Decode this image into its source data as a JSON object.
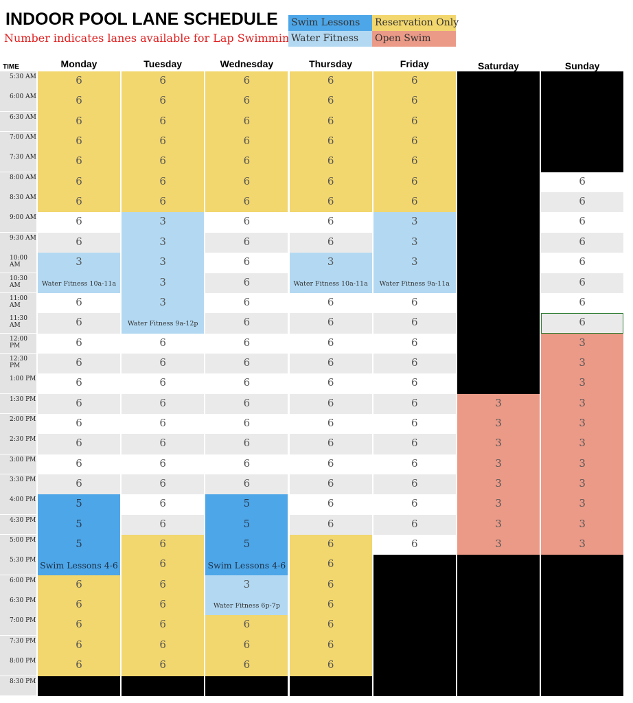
{
  "title": "INDOOR POOL LANE SCHEDULE",
  "subtitle": "Number indicates lanes available for Lap Swimming",
  "colors": {
    "swim_lessons": "#4da6e8",
    "water_fitness": "#b3d9f2",
    "reservation_only": "#f2d66e",
    "open_swim": "#eb9a88",
    "closed": "#000000",
    "row_alt": "#eaeaea",
    "row_plain": "#ffffff"
  },
  "legend": [
    {
      "label": "Swim Lessons",
      "color": "swim_lessons"
    },
    {
      "label": "Reservation Only",
      "color": "reservation_only"
    },
    {
      "label": "Water Fitness",
      "color": "water_fitness"
    },
    {
      "label": "Open Swim",
      "color": "open_swim"
    }
  ],
  "time_header": "TIME",
  "times": [
    "5:30 AM",
    "6:00 AM",
    "6:30 AM",
    "7:00 AM",
    "7:30 AM",
    "8:00 AM",
    "8:30 AM",
    "9:00 AM",
    "9:30 AM",
    "10:00 AM",
    "10:30 AM",
    "11:00 AM",
    "11:30 AM",
    "12:00 PM",
    "12:30 PM",
    "1:00 PM",
    "1:30 PM",
    "2:00 PM",
    "2:30 PM",
    "3:00 PM",
    "3:30 PM",
    "4:00 PM",
    "4:30 PM",
    "5:00 PM",
    "5:30 PM",
    "6:00 PM",
    "6:30 PM",
    "7:00 PM",
    "7:30 PM",
    "8:00 PM",
    "8:30 PM"
  ],
  "days": [
    {
      "name": "Monday",
      "runs": [
        {
          "n": 7,
          "type": "reservation_only",
          "value": "6"
        },
        {
          "n": 2,
          "type": "open",
          "value": "6"
        },
        {
          "n": 1,
          "type": "water_fitness",
          "value": "3"
        },
        {
          "n": 1,
          "type": "water_fitness",
          "value": "",
          "note": "Water Fitness 10a-11a"
        },
        {
          "n": 10,
          "type": "open",
          "value": "6"
        },
        {
          "n": 3,
          "type": "swim_lessons",
          "value": "5"
        },
        {
          "n": 1,
          "type": "swim_lessons",
          "value": "",
          "note": "Swim Lessons 4-6"
        },
        {
          "n": 5,
          "type": "reservation_only",
          "value": "6"
        },
        {
          "n": 1,
          "type": "closed",
          "value": ""
        }
      ]
    },
    {
      "name": "Tuesday",
      "runs": [
        {
          "n": 7,
          "type": "reservation_only",
          "value": "6"
        },
        {
          "n": 5,
          "type": "water_fitness",
          "value": "3"
        },
        {
          "n": 1,
          "type": "water_fitness",
          "value": "",
          "note": "Water Fitness 9a-12p"
        },
        {
          "n": 10,
          "type": "open",
          "value": "6"
        },
        {
          "n": 7,
          "type": "reservation_only",
          "value": "6"
        },
        {
          "n": 1,
          "type": "closed",
          "value": ""
        }
      ]
    },
    {
      "name": "Wednesday",
      "runs": [
        {
          "n": 7,
          "type": "reservation_only",
          "value": "6"
        },
        {
          "n": 14,
          "type": "open",
          "value": "6"
        },
        {
          "n": 3,
          "type": "swim_lessons",
          "value": "5"
        },
        {
          "n": 1,
          "type": "swim_lessons",
          "value": "",
          "note": "Swim Lessons 4-6"
        },
        {
          "n": 1,
          "type": "water_fitness",
          "value": "3"
        },
        {
          "n": 1,
          "type": "water_fitness",
          "value": "",
          "note": "Water Fitness 6p-7p"
        },
        {
          "n": 3,
          "type": "reservation_only",
          "value": "6"
        },
        {
          "n": 1,
          "type": "closed",
          "value": ""
        }
      ]
    },
    {
      "name": "Thursday",
      "runs": [
        {
          "n": 7,
          "type": "reservation_only",
          "value": "6"
        },
        {
          "n": 2,
          "type": "open",
          "value": "6"
        },
        {
          "n": 1,
          "type": "water_fitness",
          "value": "3"
        },
        {
          "n": 1,
          "type": "water_fitness",
          "value": "",
          "note": "Water Fitness 10a-11a"
        },
        {
          "n": 12,
          "type": "open",
          "value": "6"
        },
        {
          "n": 7,
          "type": "reservation_only",
          "value": "6"
        },
        {
          "n": 1,
          "type": "closed",
          "value": ""
        }
      ]
    },
    {
      "name": "Friday",
      "runs": [
        {
          "n": 7,
          "type": "reservation_only",
          "value": "6"
        },
        {
          "n": 3,
          "type": "water_fitness",
          "value": "3"
        },
        {
          "n": 1,
          "type": "water_fitness",
          "value": "",
          "note": "Water Fitness 9a-11a"
        },
        {
          "n": 13,
          "type": "open",
          "value": "6"
        },
        {
          "n": 7,
          "type": "closed",
          "value": ""
        }
      ]
    },
    {
      "name": "Saturday",
      "runs": [
        {
          "n": 16,
          "type": "closed",
          "value": ""
        },
        {
          "n": 8,
          "type": "open_swim",
          "value": "3"
        },
        {
          "n": 7,
          "type": "closed",
          "value": ""
        }
      ]
    },
    {
      "name": "Sunday",
      "runs": [
        {
          "n": 5,
          "type": "closed",
          "value": ""
        },
        {
          "n": 8,
          "type": "open",
          "value": "6"
        },
        {
          "n": 11,
          "type": "open_swim",
          "value": "3"
        },
        {
          "n": 7,
          "type": "closed",
          "value": ""
        }
      ]
    }
  ]
}
